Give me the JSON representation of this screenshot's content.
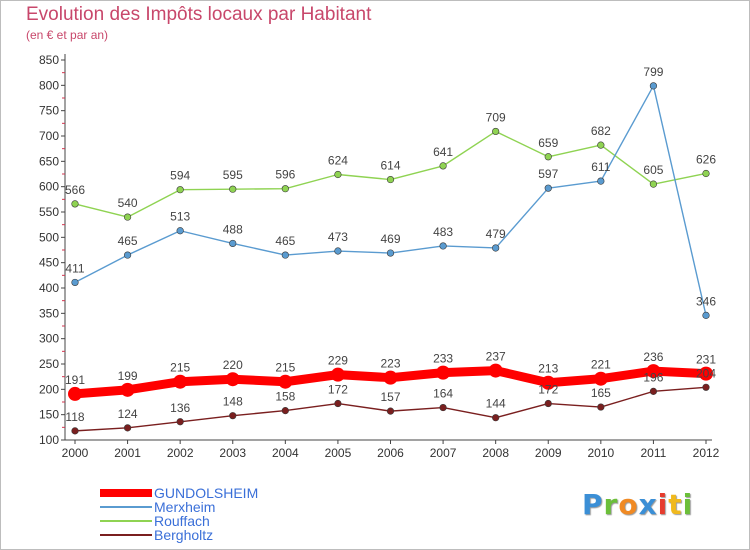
{
  "title": "Evolution des Impôts locaux par Habitant",
  "subtitle": "(en € et par an)",
  "brand": {
    "text": "Proxiti",
    "letters": [
      "P",
      "r",
      "o",
      "x",
      "i",
      "t",
      "i"
    ],
    "letter_colors": [
      "#3b8fd6",
      "#6cbf3a",
      "#f08a24",
      "#3b8fd6",
      "#e63c2e",
      "#f0b91e",
      "#6cbf3a"
    ]
  },
  "chart_data": {
    "type": "line",
    "title": "Evolution des Impôts locaux par Habitant",
    "subtitle": "(en € et par an)",
    "x": [
      2000,
      2001,
      2002,
      2003,
      2004,
      2005,
      2006,
      2007,
      2008,
      2009,
      2010,
      2011,
      2012
    ],
    "ylim": [
      100,
      850
    ],
    "yticks": [
      100,
      150,
      200,
      250,
      300,
      350,
      400,
      450,
      500,
      550,
      600,
      650,
      700,
      750,
      800,
      850
    ],
    "grid": false,
    "legend_position": "bottom-left",
    "series": [
      {
        "name": "GUNDOLSHEIM",
        "color": "#ff0000",
        "values": [
          191,
          199,
          215,
          220,
          215,
          229,
          223,
          233,
          237,
          213,
          221,
          236,
          231
        ]
      },
      {
        "name": "Merxheim",
        "color": "#5a9bd0",
        "values": [
          411,
          465,
          513,
          488,
          465,
          473,
          469,
          483,
          479,
          597,
          611,
          799,
          346
        ]
      },
      {
        "name": "Rouffach",
        "color": "#8fd352",
        "values": [
          566,
          540,
          594,
          595,
          596,
          624,
          614,
          641,
          709,
          659,
          682,
          605,
          626
        ]
      },
      {
        "name": "Bergholtz",
        "color": "#7a1f1f",
        "values": [
          118,
          124,
          136,
          148,
          158,
          172,
          157,
          164,
          144,
          172,
          165,
          196,
          204
        ]
      }
    ]
  }
}
